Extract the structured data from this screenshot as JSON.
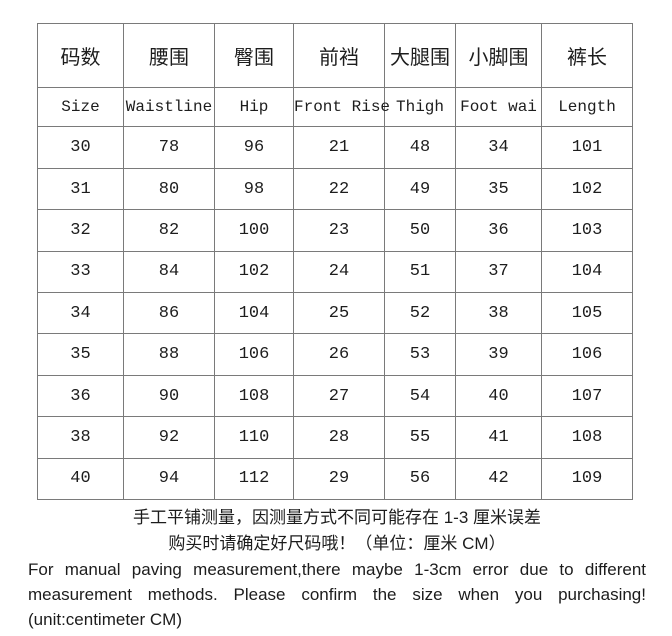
{
  "page": {
    "background_color": "#ffffff",
    "text_color": "#1d1d1d",
    "table_border_color": "#7a7a7a"
  },
  "table": {
    "columns": [
      {
        "zh": "码数",
        "en": "Size"
      },
      {
        "zh": "腰围",
        "en": "Waistline"
      },
      {
        "zh": "臀围",
        "en": "Hip"
      },
      {
        "zh": "前裆",
        "en": "Front Rise"
      },
      {
        "zh": "大腿围",
        "en": "Thigh"
      },
      {
        "zh": "小脚围",
        "en": "Foot wai"
      },
      {
        "zh": "裤长",
        "en": "Length"
      }
    ],
    "rows": [
      [
        "30",
        "78",
        "96",
        "21",
        "48",
        "34",
        "101"
      ],
      [
        "31",
        "80",
        "98",
        "22",
        "49",
        "35",
        "102"
      ],
      [
        "32",
        "82",
        "100",
        "23",
        "50",
        "36",
        "103"
      ],
      [
        "33",
        "84",
        "102",
        "24",
        "51",
        "37",
        "104"
      ],
      [
        "34",
        "86",
        "104",
        "25",
        "52",
        "38",
        "105"
      ],
      [
        "35",
        "88",
        "106",
        "26",
        "53",
        "39",
        "106"
      ],
      [
        "36",
        "90",
        "108",
        "27",
        "54",
        "40",
        "107"
      ],
      [
        "38",
        "92",
        "110",
        "28",
        "55",
        "41",
        "108"
      ],
      [
        "40",
        "94",
        "112",
        "29",
        "56",
        "42",
        "109"
      ]
    ]
  },
  "footer": {
    "zh_lines": [
      "手工平铺测量，因测量方式不同可能存在 1-3 厘米误差",
      "购买时请确定好尺码哦！（单位：厘米 CM）"
    ],
    "en_lines": [
      "For manual paving measurement,there maybe 1-3cm error due to different",
      "measurement methods. Please confirm the size when you purchasing!",
      "(unit:centimeter CM)"
    ]
  }
}
